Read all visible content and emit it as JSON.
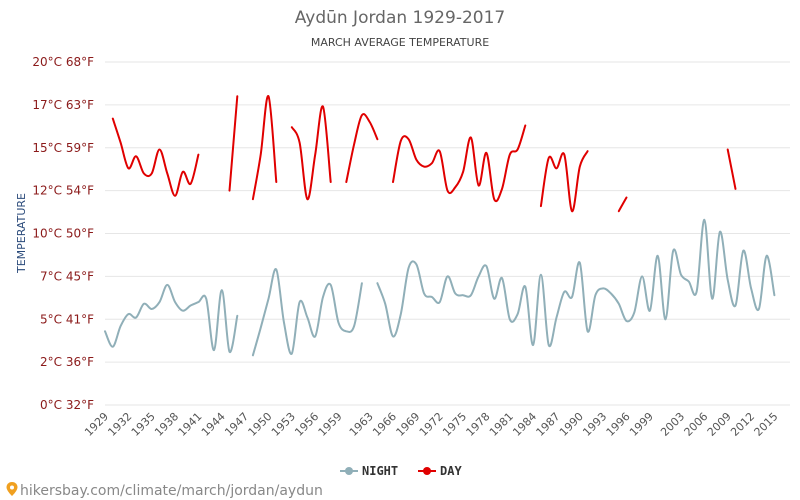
{
  "chart_data": {
    "type": "line",
    "title": "Aydūn Jordan 1929-2017",
    "subtitle": "MARCH AVERAGE TEMPERATURE",
    "ylabel": "TEMPERATURE",
    "xlabel": "",
    "ylim": [
      0,
      20
    ],
    "xlim": [
      1929,
      2017
    ],
    "y_ticks": [
      {
        "value": 0,
        "label": "0°C 32°F"
      },
      {
        "value": 2.5,
        "label": "2°C 36°F"
      },
      {
        "value": 5,
        "label": "5°C 41°F"
      },
      {
        "value": 7.5,
        "label": "7°C 45°F"
      },
      {
        "value": 10,
        "label": "10°C 50°F"
      },
      {
        "value": 12.5,
        "label": "12°C 54°F"
      },
      {
        "value": 15,
        "label": "15°C 59°F"
      },
      {
        "value": 17.5,
        "label": "17°C 63°F"
      },
      {
        "value": 20,
        "label": "20°C 68°F"
      }
    ],
    "x_ticks": [
      "1929",
      "1932",
      "1935",
      "1938",
      "1941",
      "1944",
      "1947",
      "1950",
      "1953",
      "1956",
      "1959",
      "1963",
      "1966",
      "1969",
      "1972",
      "1975",
      "1978",
      "1981",
      "1984",
      "1987",
      "1990",
      "1993",
      "1996",
      "1999",
      "2003",
      "2006",
      "2009",
      "2012",
      "2015"
    ],
    "grid": true,
    "legend_position": "bottom",
    "series": [
      {
        "name": "NIGHT",
        "color": "#90afb8",
        "values": [
          [
            1929,
            4.3
          ],
          [
            1930,
            3.4
          ],
          [
            1931,
            4.6
          ],
          [
            1932,
            5.3
          ],
          [
            1933,
            5.1
          ],
          [
            1934,
            5.9
          ],
          [
            1935,
            5.6
          ],
          [
            1936,
            6.0
          ],
          [
            1937,
            7.0
          ],
          [
            1938,
            6.0
          ],
          [
            1939,
            5.5
          ],
          [
            1940,
            5.8
          ],
          [
            1941,
            6.0
          ],
          [
            1942,
            6.2
          ],
          [
            1943,
            3.2
          ],
          [
            1944,
            6.7
          ],
          [
            1945,
            3.1
          ],
          [
            1946,
            5.2
          ],
          [
            1948,
            2.9
          ],
          [
            1949,
            4.5
          ],
          [
            1950,
            6.2
          ],
          [
            1951,
            7.9
          ],
          [
            1952,
            4.8
          ],
          [
            1953,
            3.0
          ],
          [
            1954,
            6.0
          ],
          [
            1955,
            5.1
          ],
          [
            1956,
            4.0
          ],
          [
            1957,
            6.3
          ],
          [
            1958,
            7.0
          ],
          [
            1959,
            4.8
          ],
          [
            1960,
            4.3
          ],
          [
            1961,
            4.6
          ],
          [
            1962,
            7.1
          ],
          [
            1964,
            7.1
          ],
          [
            1965,
            5.9
          ],
          [
            1966,
            4.0
          ],
          [
            1967,
            5.3
          ],
          [
            1968,
            8.0
          ],
          [
            1969,
            8.2
          ],
          [
            1970,
            6.5
          ],
          [
            1971,
            6.3
          ],
          [
            1972,
            6.0
          ],
          [
            1973,
            7.5
          ],
          [
            1974,
            6.5
          ],
          [
            1975,
            6.4
          ],
          [
            1976,
            6.4
          ],
          [
            1977,
            7.5
          ],
          [
            1978,
            8.1
          ],
          [
            1979,
            6.2
          ],
          [
            1980,
            7.4
          ],
          [
            1981,
            5.0
          ],
          [
            1982,
            5.3
          ],
          [
            1983,
            6.9
          ],
          [
            1984,
            3.5
          ],
          [
            1985,
            7.6
          ],
          [
            1986,
            3.5
          ],
          [
            1987,
            5.1
          ],
          [
            1988,
            6.6
          ],
          [
            1989,
            6.3
          ],
          [
            1990,
            8.3
          ],
          [
            1991,
            4.3
          ],
          [
            1992,
            6.4
          ],
          [
            1993,
            6.8
          ],
          [
            1994,
            6.5
          ],
          [
            1995,
            5.9
          ],
          [
            1996,
            4.9
          ],
          [
            1997,
            5.4
          ],
          [
            1998,
            7.5
          ],
          [
            1999,
            5.5
          ],
          [
            2000,
            8.7
          ],
          [
            2001,
            5.0
          ],
          [
            2002,
            9.0
          ],
          [
            2003,
            7.6
          ],
          [
            2004,
            7.2
          ],
          [
            2005,
            6.6
          ],
          [
            2006,
            10.8
          ],
          [
            2007,
            6.2
          ],
          [
            2008,
            10.1
          ],
          [
            2009,
            7.3
          ],
          [
            2010,
            5.8
          ],
          [
            2011,
            9.0
          ],
          [
            2012,
            6.8
          ],
          [
            2013,
            5.6
          ],
          [
            2014,
            8.7
          ],
          [
            2015,
            6.4
          ]
        ]
      },
      {
        "name": "DAY",
        "color": "#e00000",
        "values": [
          [
            1930,
            16.7
          ],
          [
            1931,
            15.3
          ],
          [
            1932,
            13.8
          ],
          [
            1933,
            14.5
          ],
          [
            1934,
            13.5
          ],
          [
            1935,
            13.5
          ],
          [
            1936,
            14.9
          ],
          [
            1937,
            13.5
          ],
          [
            1938,
            12.2
          ],
          [
            1939,
            13.6
          ],
          [
            1940,
            12.9
          ],
          [
            1941,
            14.6
          ],
          [
            1945,
            12.5
          ],
          [
            1946,
            18.0
          ],
          [
            1948,
            12.0
          ],
          [
            1949,
            14.6
          ],
          [
            1950,
            18.0
          ],
          [
            1951,
            13.0
          ],
          [
            1953,
            16.2
          ],
          [
            1954,
            15.3
          ],
          [
            1955,
            12.0
          ],
          [
            1956,
            14.6
          ],
          [
            1957,
            17.4
          ],
          [
            1958,
            13.0
          ],
          [
            1960,
            13.0
          ],
          [
            1961,
            15.2
          ],
          [
            1962,
            16.9
          ],
          [
            1963,
            16.5
          ],
          [
            1964,
            15.5
          ],
          [
            1966,
            13.0
          ],
          [
            1967,
            15.4
          ],
          [
            1968,
            15.5
          ],
          [
            1969,
            14.3
          ],
          [
            1970,
            13.9
          ],
          [
            1971,
            14.1
          ],
          [
            1972,
            14.8
          ],
          [
            1973,
            12.5
          ],
          [
            1974,
            12.7
          ],
          [
            1975,
            13.6
          ],
          [
            1976,
            15.6
          ],
          [
            1977,
            12.8
          ],
          [
            1978,
            14.7
          ],
          [
            1979,
            12.0
          ],
          [
            1980,
            12.6
          ],
          [
            1981,
            14.6
          ],
          [
            1982,
            14.9
          ],
          [
            1983,
            16.3
          ],
          [
            1985,
            11.6
          ],
          [
            1986,
            14.4
          ],
          [
            1987,
            13.8
          ],
          [
            1988,
            14.6
          ],
          [
            1989,
            11.3
          ],
          [
            1990,
            13.9
          ],
          [
            1991,
            14.8
          ],
          [
            1995,
            11.3
          ],
          [
            1996,
            12.1
          ],
          [
            2009,
            14.9
          ],
          [
            2010,
            12.6
          ]
        ]
      }
    ],
    "watermark": "hikersbay.com/climate/march/jordan/aydun"
  }
}
